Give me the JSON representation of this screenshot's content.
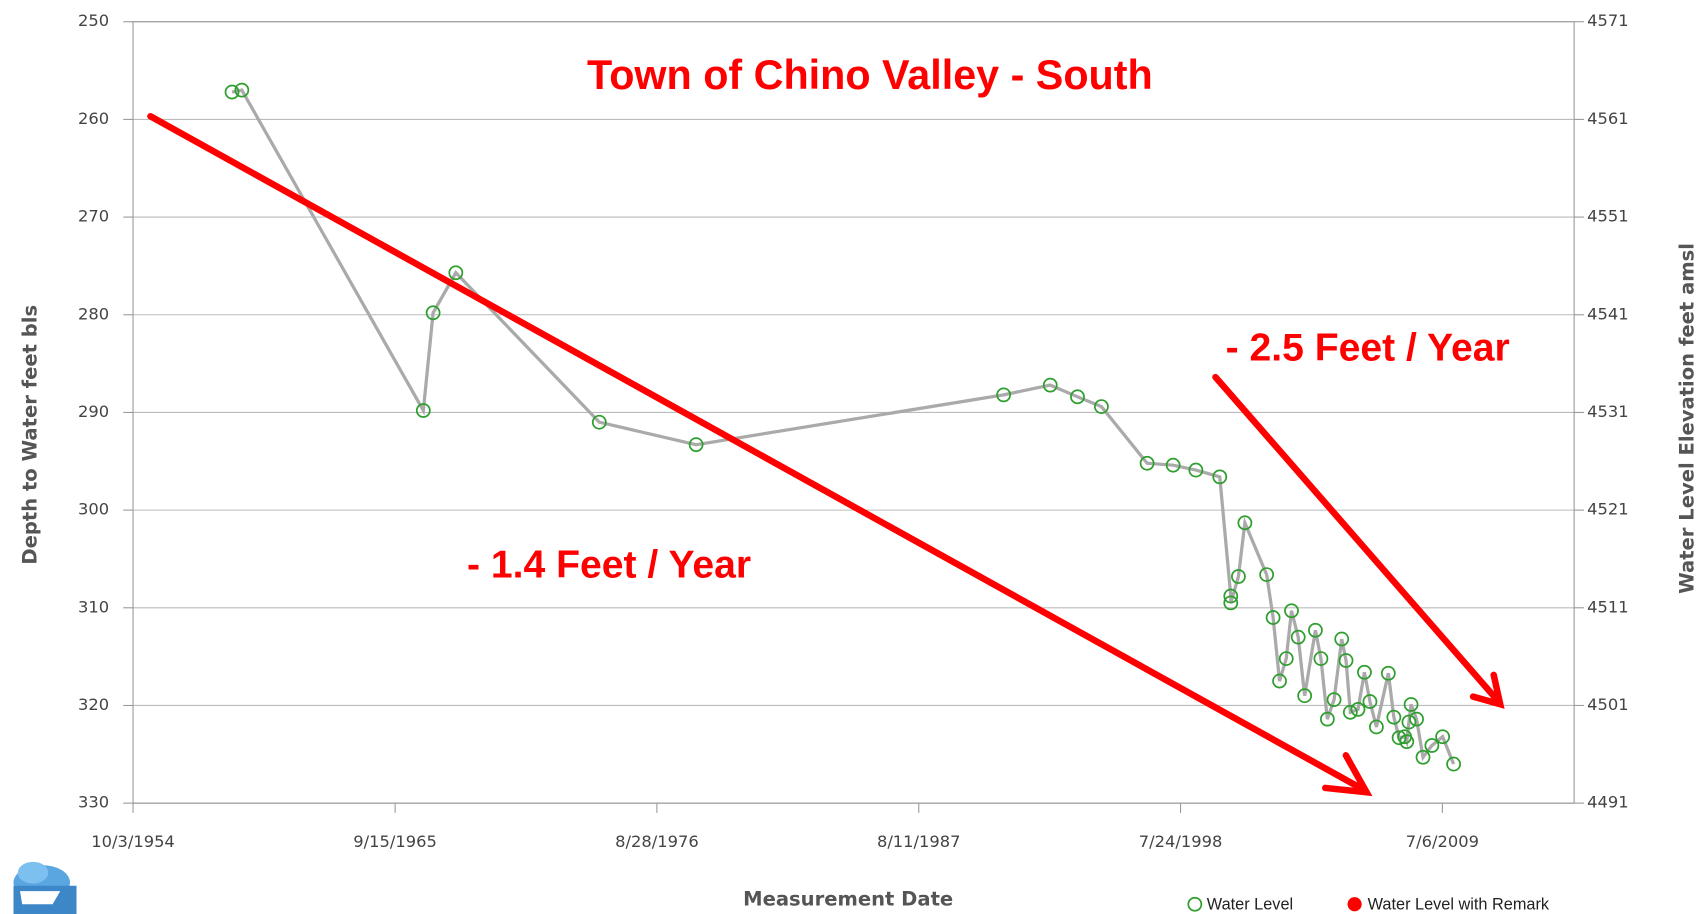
{
  "chart_data": {
    "type": "line",
    "title": "Town of Chino Valley - South",
    "x_label": "Measurement Date",
    "y_label": "Depth to Water feet bls",
    "y2_label": "Water Level Elevation feet amsl",
    "annotations": [
      "- 1.4 Feet / Year",
      "- 2.5 Feet / Year"
    ],
    "x": [
      1958.89,
      1959.3,
      1966.89,
      1967.3,
      1968.25,
      1974.25,
      1978.3,
      1991.16,
      1993.11,
      1994.25,
      1995.25,
      1997.16,
      1998.25,
      1999.2,
      2000.2,
      2000.66,
      2000.66,
      2000.98,
      2001.25,
      2002.16,
      2002.43,
      2002.7,
      2002.98,
      2003.2,
      2003.48,
      2003.75,
      2004.2,
      2004.43,
      2004.7,
      2004.98,
      2005.3,
      2005.48,
      2005.66,
      2005.98,
      2006.25,
      2006.48,
      2006.75,
      2007.25,
      2007.48,
      2007.7,
      2007.93,
      2008.02,
      2008.11,
      2008.2,
      2008.43,
      2008.7,
      2009.07,
      2009.52,
      2009.98
    ],
    "series": [
      {
        "name": "Water Level",
        "color": "#2e9e2e",
        "line_color": "#aaaaaa",
        "values": [
          257.2,
          257.0,
          289.8,
          279.8,
          275.7,
          291.0,
          293.3,
          288.2,
          287.2,
          288.4,
          289.4,
          295.2,
          295.4,
          295.9,
          296.6,
          308.8,
          309.5,
          306.8,
          301.3,
          306.6,
          311.0,
          317.5,
          315.2,
          310.3,
          313.0,
          319.0,
          312.3,
          315.2,
          321.4,
          319.4,
          313.2,
          315.4,
          320.7,
          320.4,
          316.6,
          319.6,
          322.2,
          316.7,
          321.2,
          323.3,
          323.2,
          323.7,
          321.7,
          319.9,
          321.4,
          325.3,
          324.1,
          323.2,
          326.0
        ]
      }
    ],
    "remark_legend": {
      "name": "Water Level with Remark",
      "color": "#ff0000"
    },
    "xlim": [
      1954.75,
      2015.02
    ],
    "xticks": [
      {
        "value": 1954.75,
        "label": "10/3/1954"
      },
      {
        "value": 1965.71,
        "label": "9/15/1965"
      },
      {
        "value": 1976.66,
        "label": "8/28/1976"
      },
      {
        "value": 1987.61,
        "label": "8/11/1987"
      },
      {
        "value": 1998.56,
        "label": "7/24/1998"
      },
      {
        "value": 2009.51,
        "label": "7/6/2009"
      }
    ],
    "ylim": [
      250,
      330
    ],
    "y_reversed": true,
    "yticks": [
      250,
      260,
      270,
      280,
      290,
      300,
      310,
      320,
      330
    ],
    "y2lim": [
      4491,
      4571
    ],
    "y2ticks": [
      4571,
      4561,
      4551,
      4541,
      4531,
      4521,
      4511,
      4501,
      4491
    ],
    "grid": true
  }
}
